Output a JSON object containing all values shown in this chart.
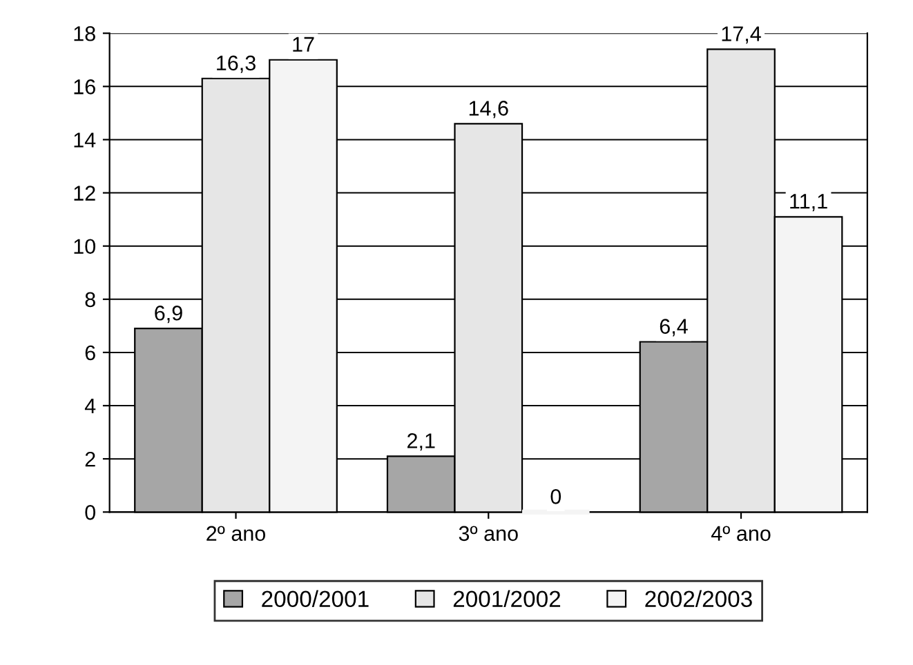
{
  "chart_data": {
    "type": "bar",
    "categories": [
      "2º ano",
      "3º ano",
      "4º ano"
    ],
    "series": [
      {
        "name": "2000/2001",
        "color": "#a6a6a6",
        "values": [
          6.9,
          2.1,
          6.4
        ],
        "value_labels": [
          "6,9",
          "2,1",
          "6,4"
        ]
      },
      {
        "name": "2001/2002",
        "color": "#e6e6e6",
        "values": [
          16.3,
          14.6,
          17.4
        ],
        "value_labels": [
          "16,3",
          "14,6",
          "17,4"
        ]
      },
      {
        "name": "2002/2003",
        "color": "#f4f4f4",
        "values": [
          17,
          0,
          11.1
        ],
        "value_labels": [
          "17",
          "0",
          "11,1"
        ]
      }
    ],
    "ylim": [
      0,
      18
    ],
    "yticks": [
      0,
      2,
      4,
      6,
      8,
      10,
      12,
      14,
      16,
      18
    ],
    "grid": "y",
    "legend": "bottom"
  }
}
